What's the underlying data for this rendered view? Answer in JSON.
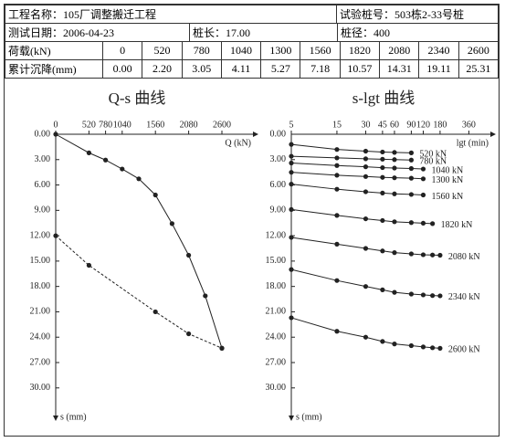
{
  "header": {
    "rows": [
      [
        "工程名称：105厂调整搬迁工程",
        "试验桩号：503栋2-33号桩"
      ],
      [
        "测试日期：2006-04-23",
        "桩长：17.00",
        "桩径：400"
      ],
      [
        "荷载(kN)",
        "0",
        "520",
        "780",
        "1040",
        "1300",
        "1560",
        "1820",
        "2080",
        "2340",
        "2600"
      ],
      [
        "累计沉降(mm)",
        "0.00",
        "2.20",
        "3.05",
        "4.11",
        "5.27",
        "7.18",
        "10.57",
        "14.31",
        "19.11",
        "25.31"
      ]
    ]
  },
  "chart_data": [
    {
      "type": "line",
      "title": "Q-s 曲线",
      "x_label": "Q (kN)",
      "y_label": "s (mm)",
      "xlim": [
        0,
        3000
      ],
      "xticks": [
        0,
        520,
        780,
        1040,
        1560,
        2080,
        2600
      ],
      "ylim": [
        0,
        32.4
      ],
      "y_inverted": true,
      "xaxis_position": "top",
      "yticks": [
        {
          "value": 0,
          "label": "0.00"
        },
        {
          "value": 3,
          "label": "3.00"
        },
        {
          "value": 6,
          "label": "6.00"
        },
        {
          "value": 9,
          "label": "9.00"
        },
        {
          "value": 12,
          "label": "12.00"
        },
        {
          "value": 15,
          "label": "15.00"
        },
        {
          "value": 18,
          "label": "18.00"
        },
        {
          "value": 21,
          "label": "21.00"
        },
        {
          "value": 24,
          "label": "24.00"
        },
        {
          "value": 27,
          "label": "27.00"
        },
        {
          "value": 30,
          "label": "30.00"
        }
      ],
      "series": [
        {
          "color": "#222222",
          "line_style": "solid",
          "x": [
            0,
            520,
            780,
            1040,
            1300,
            1560,
            1820,
            2080,
            2340,
            2600
          ],
          "values": [
            0,
            2.2,
            3.05,
            4.11,
            5.27,
            7.18,
            10.57,
            14.31,
            19.11,
            25.31
          ]
        },
        {
          "color": "#222222",
          "line_style": "dashed",
          "x": [
            0,
            520,
            1560,
            2080,
            2600
          ],
          "values": [
            12.0,
            15.5,
            21.0,
            23.6,
            25.3
          ]
        }
      ]
    },
    {
      "type": "line",
      "title": "s-lgt 曲线",
      "x_label": "lgt (min)",
      "y_label": "s (mm)",
      "xscale": "log",
      "xlim": [
        5,
        530
      ],
      "xticks": [
        5,
        15,
        30,
        45,
        60,
        90,
        120,
        180,
        360
      ],
      "ylim": [
        0,
        32.4
      ],
      "y_inverted": true,
      "xaxis_position": "top",
      "yticks": [
        {
          "value": 0,
          "label": "0.00"
        },
        {
          "value": 3,
          "label": "3.00"
        },
        {
          "value": 6,
          "label": "6.00"
        },
        {
          "value": 9,
          "label": "9.00"
        },
        {
          "value": 12,
          "label": "12.00"
        },
        {
          "value": 15,
          "label": "15.00"
        },
        {
          "value": 18,
          "label": "18.00"
        },
        {
          "value": 21,
          "label": "21.00"
        },
        {
          "value": 24,
          "label": "24.00"
        },
        {
          "value": 27,
          "label": "27.00"
        },
        {
          "value": 30,
          "label": "30.00"
        }
      ],
      "series": [
        {
          "name": "520 kN",
          "color": "#222222",
          "x": [
            5,
            15,
            30,
            45,
            60,
            90
          ],
          "values": [
            1.2,
            1.8,
            2.0,
            2.1,
            2.15,
            2.2
          ]
        },
        {
          "name": "780 kN",
          "color": "#222222",
          "x": [
            5,
            15,
            30,
            45,
            60,
            90
          ],
          "values": [
            2.6,
            2.8,
            2.9,
            2.95,
            3.0,
            3.05
          ]
        },
        {
          "name": "1040 kN",
          "color": "#222222",
          "x": [
            5,
            15,
            30,
            45,
            60,
            90,
            120
          ],
          "values": [
            3.4,
            3.7,
            3.85,
            3.95,
            4.0,
            4.05,
            4.11
          ]
        },
        {
          "name": "1300 kN",
          "color": "#222222",
          "x": [
            5,
            15,
            30,
            45,
            60,
            90,
            120
          ],
          "values": [
            4.5,
            4.85,
            5.0,
            5.1,
            5.15,
            5.2,
            5.27
          ]
        },
        {
          "name": "1560 kN",
          "color": "#222222",
          "x": [
            5,
            15,
            30,
            45,
            60,
            90,
            120
          ],
          "values": [
            5.9,
            6.5,
            6.8,
            6.95,
            7.05,
            7.12,
            7.18
          ]
        },
        {
          "name": "1820 kN",
          "color": "#222222",
          "x": [
            5,
            15,
            30,
            45,
            60,
            90,
            120,
            150
          ],
          "values": [
            8.9,
            9.6,
            10.0,
            10.2,
            10.35,
            10.45,
            10.52,
            10.57
          ]
        },
        {
          "name": "2080 kN",
          "color": "#222222",
          "x": [
            5,
            15,
            30,
            45,
            60,
            90,
            120,
            150,
            180
          ],
          "values": [
            12.2,
            13.0,
            13.5,
            13.8,
            14.0,
            14.15,
            14.25,
            14.28,
            14.31
          ]
        },
        {
          "name": "2340 kN",
          "color": "#222222",
          "x": [
            5,
            15,
            30,
            45,
            60,
            90,
            120,
            150,
            180
          ],
          "values": [
            16.0,
            17.3,
            18.0,
            18.4,
            18.7,
            18.9,
            19.0,
            19.08,
            19.11
          ]
        },
        {
          "name": "2600 kN",
          "color": "#222222",
          "x": [
            5,
            15,
            30,
            45,
            60,
            90,
            120,
            150,
            180
          ],
          "values": [
            21.7,
            23.3,
            24.0,
            24.5,
            24.8,
            25.0,
            25.15,
            25.25,
            25.31
          ]
        }
      ]
    }
  ]
}
